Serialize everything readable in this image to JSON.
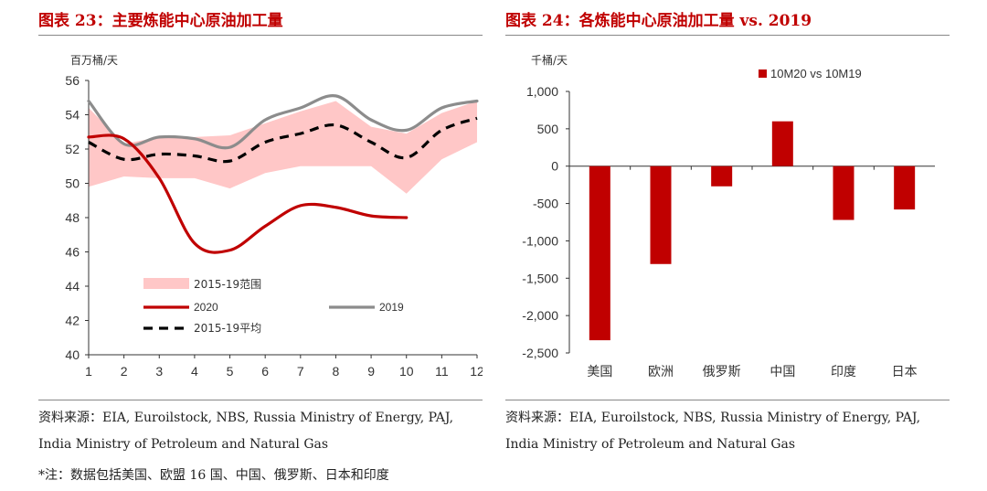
{
  "left": {
    "title": "图表 23：主要炼能中心原油加工量",
    "source_line1": "资料来源：EIA, Euroilstock, NBS, Russia Ministry of Energy, PAJ,",
    "source_line2": "India Ministry of Petroleum and Natural Gas",
    "footnote": "*注：数据包括美国、欧盟 16 国、中国、俄罗斯、日本和印度"
  },
  "right": {
    "title": "图表 24：各炼能中心原油加工量 vs. 2019",
    "source_line1": "资料来源：EIA, Euroilstock, NBS, Russia Ministry of Energy, PAJ,",
    "source_line2": "India Ministry of Petroleum and Natural Gas"
  },
  "chart_data": [
    {
      "type": "line",
      "unit_label": "百万桶/天",
      "x": [
        1,
        2,
        3,
        4,
        5,
        6,
        7,
        8,
        9,
        10,
        11,
        12
      ],
      "xlabel": "",
      "ylabel": "",
      "ylim": [
        40,
        56
      ],
      "yticks": [
        40,
        42,
        44,
        46,
        48,
        50,
        52,
        54,
        56
      ],
      "range_band": {
        "name": "2015-19范围",
        "color": "#ffc7c7",
        "low": [
          49.8,
          50.4,
          50.3,
          50.3,
          49.7,
          50.6,
          51.0,
          51.0,
          51.0,
          49.4,
          51.4,
          52.4
        ],
        "high": [
          54.4,
          52.3,
          52.7,
          52.7,
          52.8,
          53.5,
          54.2,
          54.8,
          53.3,
          52.9,
          54.1,
          54.8
        ]
      },
      "series": [
        {
          "name": "2020",
          "color": "#c00000",
          "values": [
            52.7,
            52.6,
            50.3,
            46.5,
            46.1,
            47.5,
            48.7,
            48.6,
            48.1,
            48.0,
            null,
            null
          ]
        },
        {
          "name": "2019",
          "color": "#8c8c8c",
          "values": [
            54.8,
            52.3,
            52.7,
            52.6,
            52.1,
            53.7,
            54.4,
            55.1,
            53.7,
            53.1,
            54.4,
            54.8
          ]
        },
        {
          "name": "2015-19平均",
          "color": "#000000",
          "dashed": true,
          "values": [
            52.4,
            51.4,
            51.7,
            51.6,
            51.3,
            52.4,
            52.9,
            53.4,
            52.4,
            51.5,
            53.1,
            53.8
          ]
        }
      ],
      "legend": "lower-left"
    },
    {
      "type": "bar",
      "unit_label": "千桶/天",
      "categories": [
        "美国",
        "欧洲",
        "俄罗斯",
        "中国",
        "印度",
        "日本"
      ],
      "series": [
        {
          "name": "10M20 vs 10M19",
          "color": "#c00000",
          "values": [
            -2330,
            -1310,
            -270,
            600,
            -720,
            -580
          ]
        }
      ],
      "ylim": [
        -2500,
        1000
      ],
      "yticks": [
        -2500,
        -2000,
        -1500,
        -1000,
        -500,
        0,
        500,
        1000
      ],
      "ytick_labels": [
        "-2,500",
        "-2,000",
        "-1,500",
        "-1,000",
        "-500",
        "0",
        "500",
        "1,000"
      ],
      "legend": "top"
    }
  ]
}
